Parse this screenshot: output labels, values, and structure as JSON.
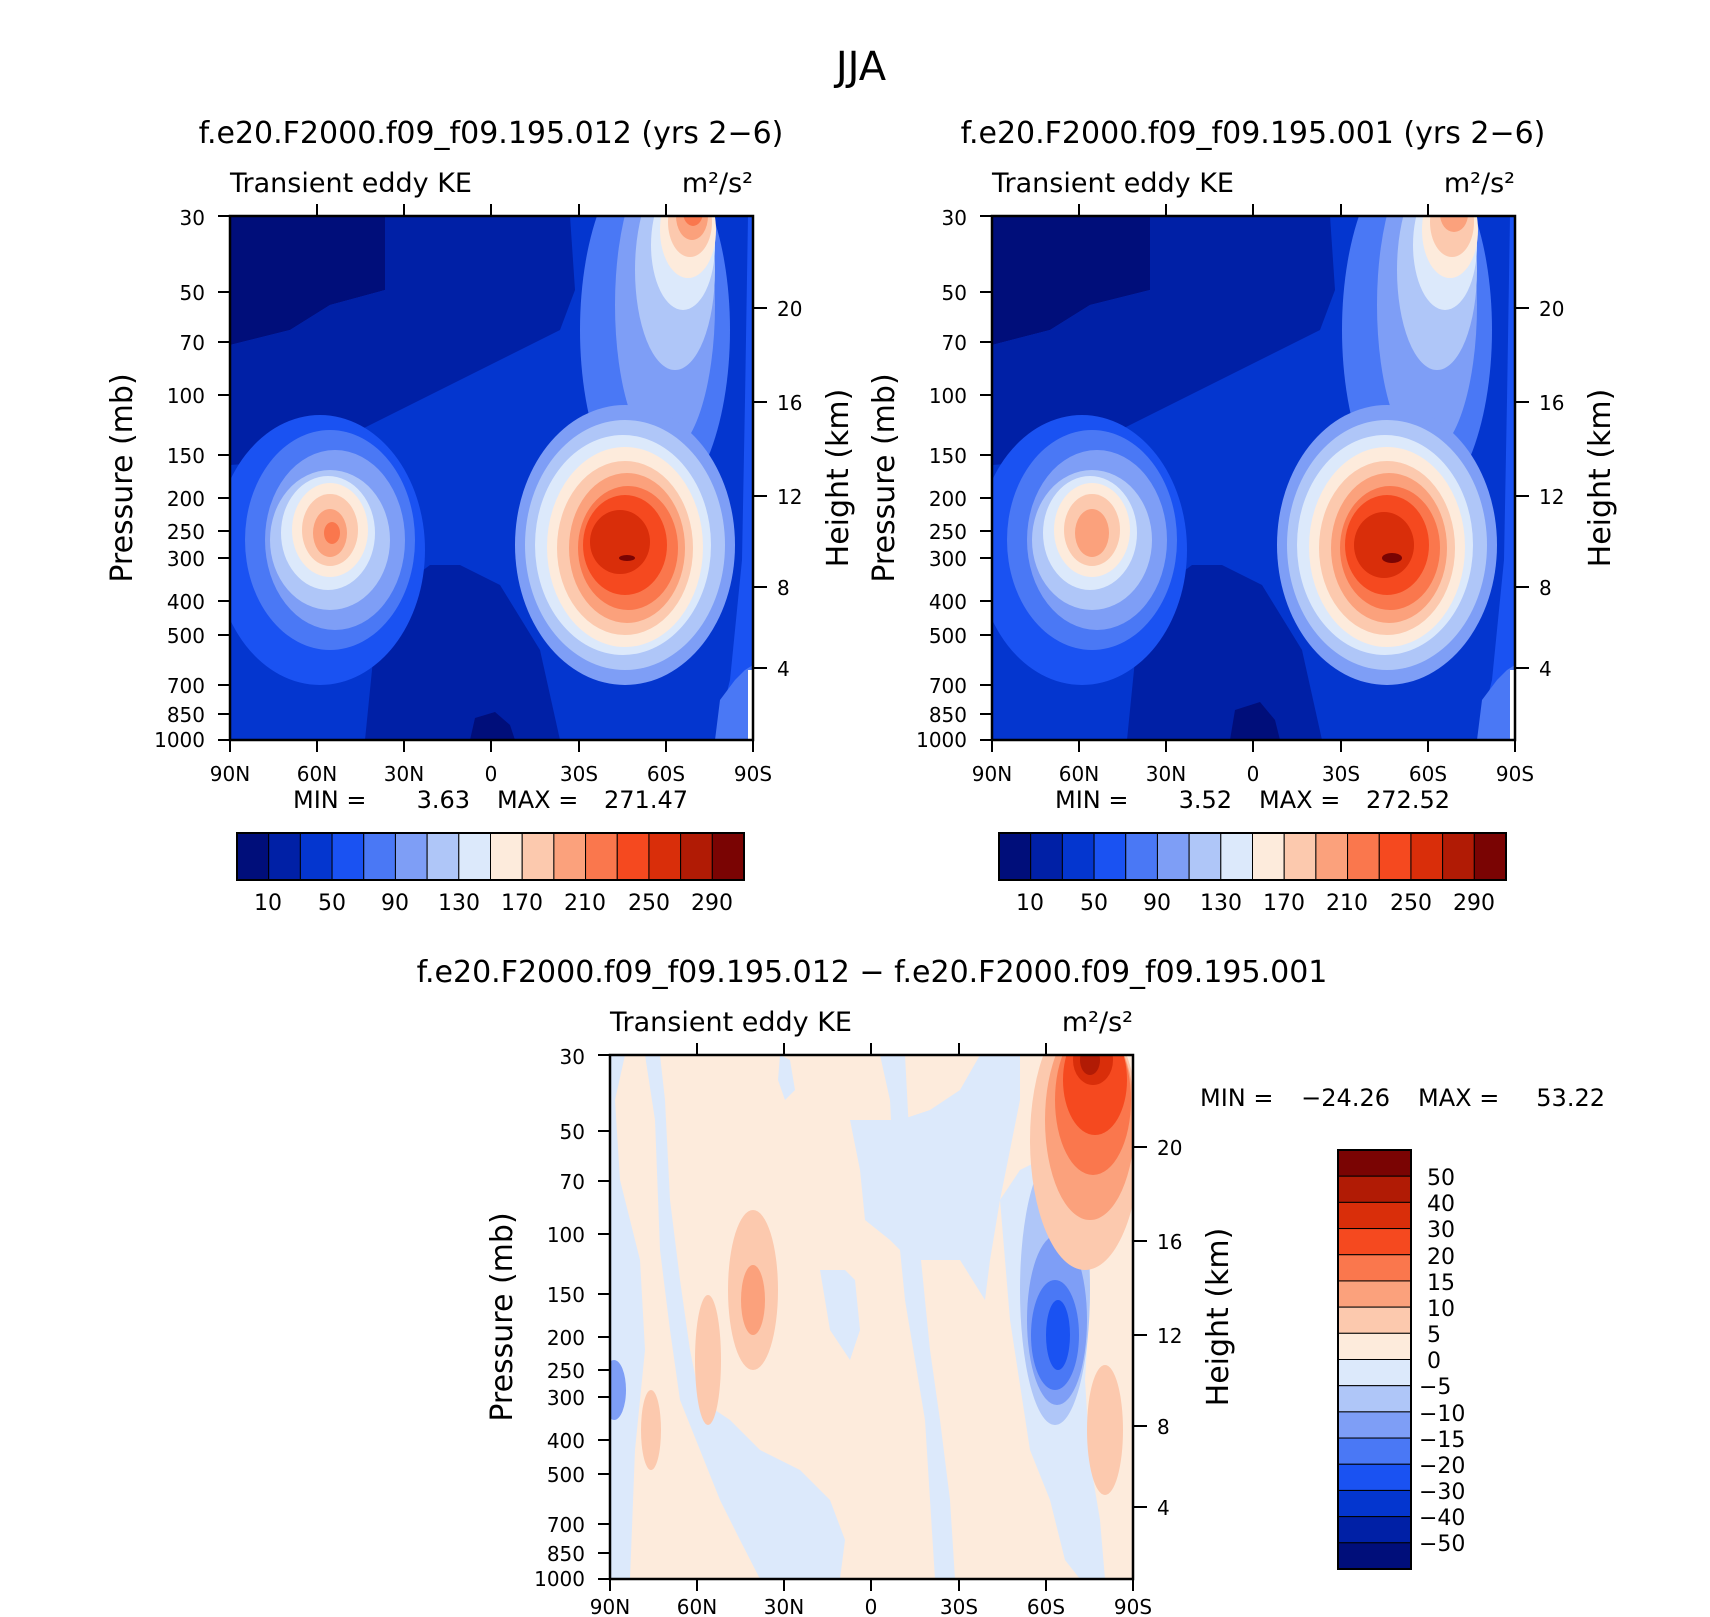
{
  "figure": {
    "title": "JJA"
  },
  "colors": {
    "abs_levels": [
      "#000e7a",
      "#0020a6",
      "#0436cf",
      "#1a52f2",
      "#4a78f5",
      "#7e9ef6",
      "#afc6f8",
      "#dce9fb",
      "#fdebdc",
      "#fcc9ae",
      "#fba17c",
      "#fa774d",
      "#f5491f",
      "#d92e0a",
      "#b11b05",
      "#7a0403"
    ],
    "diff_levels": [
      "#000e7a",
      "#0020a6",
      "#0436cf",
      "#1a52f2",
      "#4a78f5",
      "#7e9ef6",
      "#afc6f8",
      "#dce9fb",
      "#fdebdc",
      "#fcc9ae",
      "#fba17c",
      "#fa774d",
      "#f5491f",
      "#d92e0a",
      "#b11b05",
      "#7a0403"
    ]
  },
  "chart_data": [
    {
      "type": "heatmap",
      "title": "f.e20.F2000.f09_f09.195.012 (yrs 2−6)",
      "left_label": "Transient eddy KE",
      "right_label": "m²/s²",
      "xlabel": "",
      "ylabel": "Pressure (mb)",
      "y2label": "Height (km)",
      "x_ticks": [
        "90N",
        "60N",
        "30N",
        "0",
        "30S",
        "60S",
        "90S"
      ],
      "y_ticks": [
        "30",
        "50",
        "70",
        "100",
        "150",
        "200",
        "250",
        "300",
        "400",
        "500",
        "700",
        "850",
        "1000"
      ],
      "y2_ticks": [
        "20",
        "16",
        "12",
        "8",
        "4"
      ],
      "xlim": [
        90,
        -90
      ],
      "ylim": [
        1000,
        30
      ],
      "y_scale": "log",
      "stats": {
        "min_label": "MIN =",
        "min": "3.63",
        "max_label": "MAX =",
        "max": "271.47"
      },
      "colorbar": {
        "levels": [
          "10",
          "50",
          "90",
          "130",
          "170",
          "210",
          "250",
          "290"
        ]
      },
      "features": [
        {
          "lat": -47,
          "p": 290,
          "value": 271
        },
        {
          "lat": -43,
          "p": 300,
          "value": 260
        },
        {
          "lat": 52,
          "p": 270,
          "value": 195
        },
        {
          "lat": -62,
          "p": 30,
          "value": 200
        },
        {
          "lat": -55,
          "p": 150,
          "value": 150
        },
        {
          "lat": 20,
          "p": 600,
          "value": 8
        },
        {
          "lat": 85,
          "p": 40,
          "value": 8
        },
        {
          "lat": 10,
          "p": 130,
          "value": 40
        },
        {
          "lat": -88,
          "p": 800,
          "value": 60
        }
      ]
    },
    {
      "type": "heatmap",
      "title": "f.e20.F2000.f09_f09.195.001 (yrs 2−6)",
      "left_label": "Transient eddy KE",
      "right_label": "m²/s²",
      "xlabel": "",
      "ylabel": "Pressure (mb)",
      "y2label": "Height (km)",
      "x_ticks": [
        "90N",
        "60N",
        "30N",
        "0",
        "30S",
        "60S",
        "90S"
      ],
      "y_ticks": [
        "30",
        "50",
        "70",
        "100",
        "150",
        "200",
        "250",
        "300",
        "400",
        "500",
        "700",
        "850",
        "1000"
      ],
      "y2_ticks": [
        "20",
        "16",
        "12",
        "8",
        "4"
      ],
      "xlim": [
        90,
        -90
      ],
      "ylim": [
        1000,
        30
      ],
      "y_scale": "log",
      "stats": {
        "min_label": "MIN =",
        "min": "3.52",
        "max_label": "MAX =",
        "max": "272.52"
      },
      "colorbar": {
        "levels": [
          "10",
          "50",
          "90",
          "130",
          "170",
          "210",
          "250",
          "290"
        ]
      },
      "features": [
        {
          "lat": -48,
          "p": 300,
          "value": 272
        },
        {
          "lat": -43,
          "p": 290,
          "value": 260
        },
        {
          "lat": 52,
          "p": 270,
          "value": 190
        },
        {
          "lat": -62,
          "p": 30,
          "value": 175
        },
        {
          "lat": -55,
          "p": 150,
          "value": 150
        },
        {
          "lat": 20,
          "p": 600,
          "value": 8
        },
        {
          "lat": 85,
          "p": 40,
          "value": 8
        },
        {
          "lat": 10,
          "p": 130,
          "value": 40
        },
        {
          "lat": -88,
          "p": 800,
          "value": 60
        }
      ]
    },
    {
      "type": "heatmap",
      "title": "f.e20.F2000.f09_f09.195.012 − f.e20.F2000.f09_f09.195.001",
      "left_label": "Transient eddy KE",
      "right_label": "m²/s²",
      "xlabel": "",
      "ylabel": "Pressure (mb)",
      "y2label": "Height (km)",
      "x_ticks": [
        "90N",
        "60N",
        "30N",
        "0",
        "30S",
        "60S",
        "90S"
      ],
      "y_ticks": [
        "30",
        "50",
        "70",
        "100",
        "150",
        "200",
        "250",
        "300",
        "400",
        "500",
        "700",
        "850",
        "1000"
      ],
      "y2_ticks": [
        "20",
        "16",
        "12",
        "8",
        "4"
      ],
      "xlim": [
        90,
        -90
      ],
      "ylim": [
        1000,
        30
      ],
      "y_scale": "log",
      "stats": {
        "min_label": "MIN =",
        "min": "−24.26",
        "max_label": "MAX =",
        "max": "53.22"
      },
      "colorbar": {
        "levels": [
          "50",
          "40",
          "30",
          "20",
          "15",
          "10",
          "5",
          "0",
          "−5",
          "−10",
          "−15",
          "−20",
          "−30",
          "−40",
          "−50"
        ]
      },
      "features": [
        {
          "lat": -75,
          "p": 32,
          "value": 53
        },
        {
          "lat": -70,
          "p": 70,
          "value": 25
        },
        {
          "lat": -61,
          "p": 220,
          "value": -24
        },
        {
          "lat": -62,
          "p": 500,
          "value": -8
        },
        {
          "lat": 40,
          "p": 190,
          "value": 12
        },
        {
          "lat": 57,
          "p": 250,
          "value": 6
        },
        {
          "lat": 88,
          "p": 280,
          "value": -8
        },
        {
          "lat": -85,
          "p": 330,
          "value": 6
        }
      ]
    }
  ]
}
